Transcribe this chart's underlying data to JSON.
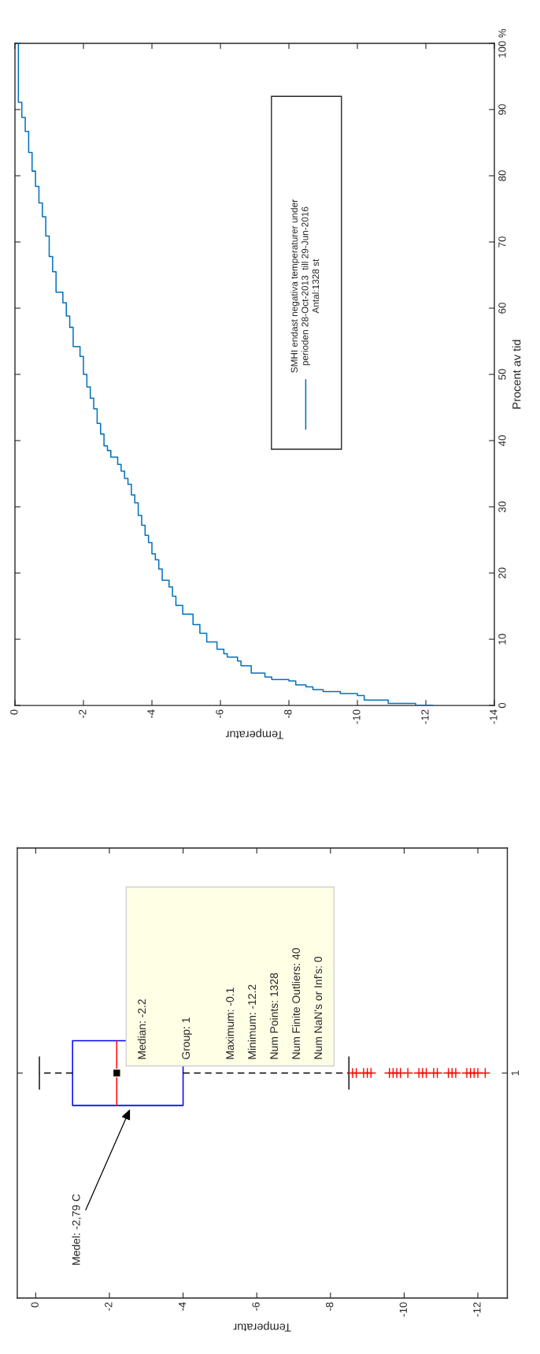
{
  "chart_data": [
    {
      "type": "step",
      "xlabel": "Temperatur",
      "ylabel": "Procent av tid",
      "xlim": [
        0,
        -14
      ],
      "xticks": [
        0,
        -2,
        -4,
        -6,
        -8,
        -10,
        -12,
        -14
      ],
      "ylim": [
        0,
        100
      ],
      "yticks": [
        0,
        10,
        20,
        30,
        40,
        50,
        60,
        70,
        80,
        90,
        {
          "value": 100,
          "label": "100 %"
        }
      ],
      "legend": "top",
      "series": [
        {
          "name": "SMHI endast negativa temperaturer under\nperioden 28-Oct-2013  till 29-Jun-2016\nAntal:1328 st",
          "color": "#0072bd",
          "x": [
            -12.2,
            -11.7,
            -10.9,
            -10.2,
            -10.0,
            -9.5,
            -9.0,
            -8.7,
            -8.5,
            -8.2,
            -8.0,
            -7.5,
            -7.3,
            -6.9,
            -6.6,
            -6.5,
            -6.2,
            -6.1,
            -5.9,
            -5.6,
            -5.4,
            -5.2,
            -4.9,
            -4.7,
            -4.6,
            -4.5,
            -4.3,
            -4.2,
            -4.1,
            -4.0,
            -3.9,
            -3.8,
            -3.7,
            -3.6,
            -3.5,
            -3.4,
            -3.3,
            -3.2,
            -3.1,
            -3.0,
            -2.8,
            -2.7,
            -2.6,
            -2.5,
            -2.4,
            -2.3,
            -2.2,
            -2.1,
            -2.0,
            -1.9,
            -1.7,
            -1.6,
            -1.5,
            -1.4,
            -1.2,
            -1.1,
            -1.0,
            -0.9,
            -0.8,
            -0.7,
            -0.6,
            -0.5,
            -0.4,
            -0.3,
            -0.2,
            -0.1
          ],
          "values": [
            0,
            0.3,
            0.8,
            1.5,
            1.8,
            2.1,
            2.4,
            2.8,
            3.1,
            3.7,
            3.9,
            4.3,
            4.9,
            6.0,
            6.7,
            7.3,
            7.8,
            8.5,
            9.6,
            10.9,
            12.2,
            13.8,
            15.1,
            16.5,
            17.9,
            18.9,
            20.6,
            22.0,
            22.9,
            24.6,
            25.7,
            27.2,
            28.7,
            30.6,
            31.8,
            33.4,
            34.3,
            35.4,
            36.4,
            37.5,
            38.5,
            39.2,
            41.0,
            42.6,
            44.8,
            46.4,
            48.1,
            50.0,
            52.7,
            54.2,
            57.1,
            58.8,
            60.8,
            62.4,
            65.5,
            67.8,
            70.9,
            73.8,
            75.9,
            78.4,
            80.7,
            83.5,
            86.7,
            88.8,
            91.1,
            100
          ]
        }
      ]
    },
    {
      "type": "box",
      "orientation": "horizontal",
      "xlabel": "Temperatur",
      "color": "#0000ff",
      "xlim": [
        0.5,
        -12.8
      ],
      "xticks": [
        0,
        -2,
        -4,
        -6,
        -8,
        -10,
        -12
      ],
      "categories": [
        "1"
      ],
      "boxes": [
        {
          "low": -8.5,
          "q1": -4.0,
          "median": -2.2,
          "q3": -1.0,
          "high": -0.1,
          "outliers": [
            -8.6,
            -8.7,
            -8.9,
            -9.0,
            -9.1,
            -9.6,
            -9.7,
            -9.8,
            -9.9,
            -10.1,
            -10.4,
            -10.5,
            -10.6,
            -10.8,
            -10.9,
            -11.2,
            -11.3,
            -11.4,
            -11.7,
            -11.8,
            -11.9,
            -12.0,
            -12.2
          ]
        }
      ],
      "annotations": [
        "Median: -2.2",
        "Group: 1",
        "Maximum: -0.1",
        "Minimum: -12.2",
        "Num Points: 1328",
        "Num Finite Outliers: 40",
        "Num NaN's or Inf's: 0",
        "Medel: -2,79 C"
      ]
    }
  ]
}
